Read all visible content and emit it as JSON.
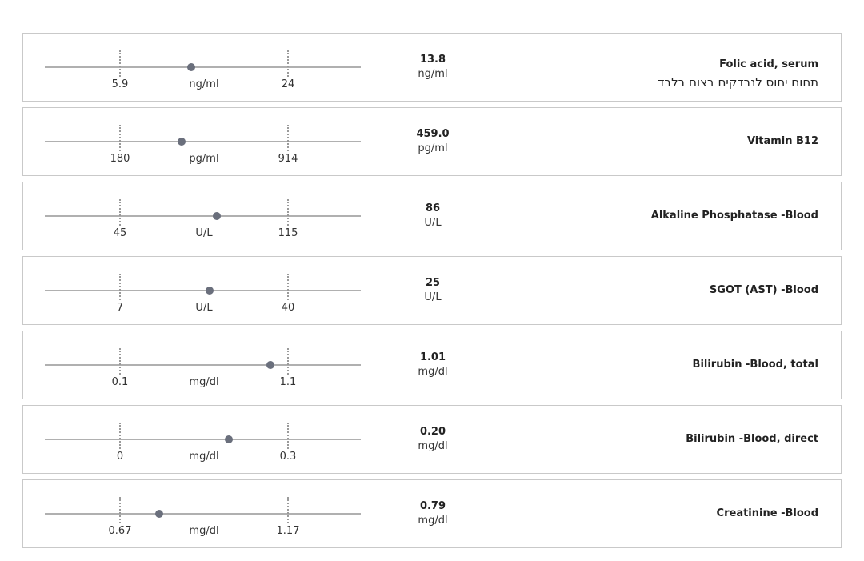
{
  "tests": [
    {
      "name": "Folic acid, serum",
      "note": "תחום יחוס לנבדקים בצום בלבד",
      "value": "13.8",
      "unit": "ng/ml",
      "low": "5.9",
      "high": "24",
      "position": 0.43
    },
    {
      "name": "Vitamin B12",
      "note": "",
      "value": "459.0",
      "unit": "pg/ml",
      "low": "180",
      "high": "914",
      "position": 0.37
    },
    {
      "name": "Alkaline Phosphatase -Blood",
      "note": "",
      "value": "86",
      "unit": "U/L",
      "low": "45",
      "high": "115",
      "position": 0.58
    },
    {
      "name": "SGOT (AST) -Blood",
      "note": "",
      "value": "25",
      "unit": "U/L",
      "low": "7",
      "high": "40",
      "position": 0.54
    },
    {
      "name": "Bilirubin -Blood, total",
      "note": "",
      "value": "1.01",
      "unit": "mg/dl",
      "low": "0.1",
      "high": "1.1",
      "position": 0.9
    },
    {
      "name": "Bilirubin -Blood, direct",
      "note": "",
      "value": "0.20",
      "unit": "mg/dl",
      "low": "0",
      "high": "0.3",
      "position": 0.65
    },
    {
      "name": "Creatinine -Blood",
      "note": "",
      "value": "0.79",
      "unit": "mg/dl",
      "low": "0.67",
      "high": "1.17",
      "position": 0.24
    }
  ],
  "colors": {
    "track": "#b0b0b0",
    "marker": "#6a6f7c",
    "border": "#c9c9c9"
  }
}
